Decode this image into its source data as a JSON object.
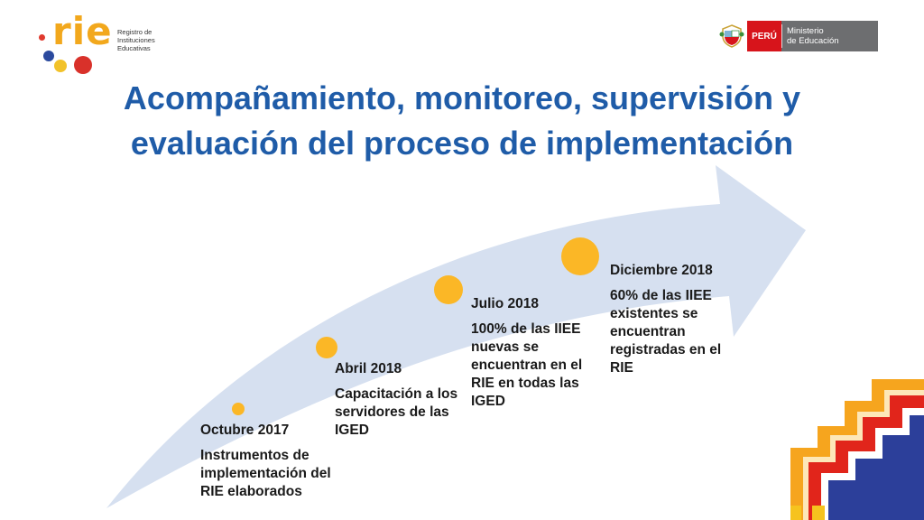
{
  "logo": {
    "rie_wordmark": "rie",
    "rie_subtitle_lines": [
      "Registro de",
      "Instituciones",
      "Educativas"
    ],
    "country": "PERÚ",
    "ministry_lines": [
      "Ministerio",
      "de Educación"
    ]
  },
  "title": "Acompañamiento, monitoreo, supervisión y evaluación del proceso de implementación",
  "milestones": [
    {
      "date": "Octubre 2017",
      "description": "Instrumentos de implementación del RIE elaborados"
    },
    {
      "date": "Abril 2018",
      "description": "Capacitación a los servidores de las IGED"
    },
    {
      "date": "Julio 2018",
      "description": "100% de las IIEE nuevas se encuentran en el RIE en todas las IGED"
    },
    {
      "date": "Diciembre 2018",
      "description": "60% de las IIEE existentes se encuentran registradas en el RIE"
    }
  ],
  "colors": {
    "title": "#1f5ca8",
    "arrow_fill": "#d6e0f0",
    "milestone_dot": "#fbb726",
    "rie_orange": "#f2a81d",
    "peru_red": "#d7141b",
    "ministry_gray": "#6d6e70"
  }
}
